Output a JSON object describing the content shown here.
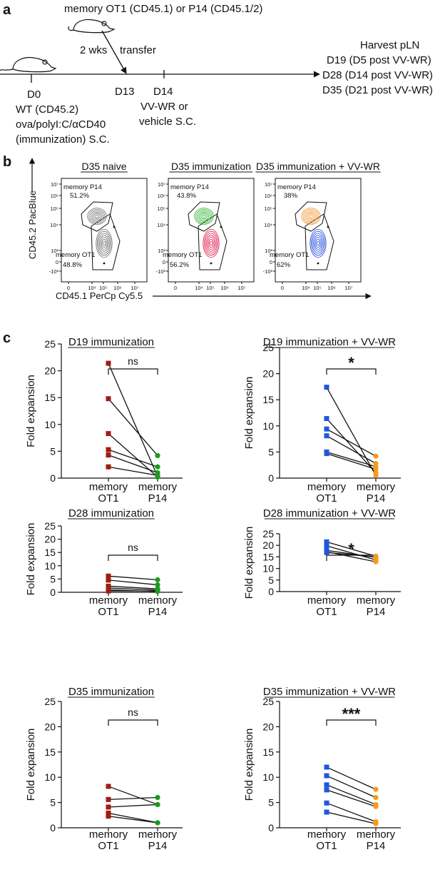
{
  "panel_labels": {
    "a": "a",
    "b": "b",
    "c": "c"
  },
  "timeline": {
    "transfer_text": "memory OT1 (CD45.1) or P14 (CD45.1/2)",
    "wks_text": "2 wks",
    "transfer_label": "transfer",
    "d0": "D0",
    "d0_line1": "WT (CD45.2)",
    "d0_line2": "ova/polyI:C/αCD40",
    "d0_line3": "(immunization) S.C.",
    "d13": "D13",
    "d14": "D14",
    "d14_line1": "VV-WR or",
    "d14_line2": "vehicle S.C.",
    "harvest": [
      "Harvest pLN",
      "D19 (D5 post VV-WR)",
      "D28 (D14 post VV-WR)",
      "D35 (D21 post VV-WR)"
    ]
  },
  "flow": {
    "ylabel": "CD45.2 PacBlue",
    "xlabel": "CD45.1 PerCp Cy5.5",
    "y_ticks": [
      "10⁷",
      "10⁶",
      "10⁵",
      "10⁴",
      "10³",
      "0",
      "-10³"
    ],
    "x_ticks": [
      "0",
      "10⁴",
      "10⁵",
      "10⁶",
      "10⁷"
    ],
    "panels": [
      {
        "title": "D35 naive",
        "p14_label": "memory P14",
        "p14_pct": "51.2%",
        "ot1_label": "memory OT1",
        "ot1_pct": "48.8%",
        "p14_color": "#6a6a6a",
        "ot1_color": "#6a6a6a"
      },
      {
        "title": "D35 immunization",
        "p14_label": "memory P14",
        "p14_pct": "43.8%",
        "ot1_label": "memory OT1",
        "ot1_pct": "56.2%",
        "p14_color": "#22aa22",
        "ot1_color": "#e0144a"
      },
      {
        "title": "D35 immunization + VV-WR",
        "p14_label": "memory P14",
        "p14_pct": "38%",
        "ot1_label": "memory OT1",
        "ot1_pct": "62%",
        "p14_color": "#f08a1c",
        "ot1_color": "#1f47d6"
      }
    ]
  },
  "colors": {
    "dark_red": "#a01c14",
    "green": "#1d9a1d",
    "blue": "#1f56e0",
    "orange": "#f59a20"
  },
  "chart_data": [
    {
      "type": "scatter",
      "title": "D19 immunization",
      "ylabel": "Fold expansion",
      "categories": [
        "memory\nOT1",
        "memory\nP14"
      ],
      "ylim": [
        0,
        25
      ],
      "yticks": [
        0,
        5,
        10,
        15,
        20,
        25
      ],
      "significance": "ns",
      "series": [
        {
          "name": "memory OT1",
          "values": [
            21.4,
            14.8,
            8.3,
            5.3,
            4.3,
            2.1
          ]
        },
        {
          "name": "memory P14",
          "values": [
            0.3,
            4.2,
            0.2,
            2.1,
            1.0,
            0.5
          ]
        }
      ],
      "colors": [
        "#a01c14",
        "#1d9a1d"
      ]
    },
    {
      "type": "scatter",
      "title": "D19 immunization + VV-WR",
      "ylabel": "Fold expansion",
      "categories": [
        "memory\nOT1",
        "memory\nP14"
      ],
      "ylim": [
        0,
        25
      ],
      "yticks": [
        0,
        5,
        10,
        15,
        20,
        25
      ],
      "significance": "*",
      "series": [
        {
          "name": "memory OT1",
          "values": [
            17.4,
            11.4,
            9.4,
            8.1,
            5.0,
            4.7
          ]
        },
        {
          "name": "memory P14",
          "values": [
            0.5,
            1.0,
            4.2,
            2.8,
            2.2,
            1.7
          ]
        }
      ],
      "colors": [
        "#1f56e0",
        "#f59a20"
      ]
    },
    {
      "type": "scatter",
      "title": "D28 immunization",
      "ylabel": "Fold expansion",
      "categories": [
        "memory\nOT1",
        "memory\nP14"
      ],
      "ylim": [
        0,
        25
      ],
      "yticks": [
        0,
        5,
        10,
        15,
        20,
        25
      ],
      "significance": "ns",
      "series": [
        {
          "name": "memory OT1",
          "values": [
            6.1,
            4.6,
            2.3,
            1.6,
            0.9,
            0.5
          ]
        },
        {
          "name": "memory P14",
          "values": [
            4.7,
            2.8,
            1.3,
            0.8,
            0.3,
            0.5
          ]
        }
      ],
      "colors": [
        "#a01c14",
        "#1d9a1d"
      ]
    },
    {
      "type": "scatter",
      "title": "D28 immunization + VV-WR",
      "ylabel": "Fold expansion",
      "categories": [
        "memory\nOT1",
        "memory\nP14"
      ],
      "ylim": [
        0,
        25
      ],
      "yticks": [
        0,
        5,
        10,
        15,
        20,
        25
      ],
      "significance": "*",
      "series": [
        {
          "name": "memory OT1",
          "values": [
            21.5,
            19.8,
            17.8,
            17.2,
            16.9
          ]
        },
        {
          "name": "memory P14",
          "values": [
            15.3,
            13.7,
            14.8,
            12.9,
            15.0
          ]
        }
      ],
      "colors": [
        "#1f56e0",
        "#f59a20"
      ]
    },
    {
      "type": "scatter",
      "title": "D35 immunization",
      "ylabel": "Fold expansion",
      "categories": [
        "memory\nOT1",
        "memory\nP14"
      ],
      "ylim": [
        0,
        25
      ],
      "yticks": [
        0,
        5,
        10,
        15,
        20,
        25
      ],
      "significance": "ns",
      "series": [
        {
          "name": "memory OT1",
          "values": [
            8.2,
            5.6,
            4.1,
            2.9,
            2.3
          ]
        },
        {
          "name": "memory P14",
          "values": [
            4.6,
            6.0,
            4.6,
            1.0,
            1.0
          ]
        }
      ],
      "colors": [
        "#a01c14",
        "#1d9a1d"
      ]
    },
    {
      "type": "scatter",
      "title": "D35 immunization + VV-WR",
      "ylabel": "Fold expansion",
      "categories": [
        "memory\nOT1",
        "memory\nP14"
      ],
      "ylim": [
        0,
        25
      ],
      "yticks": [
        0,
        5,
        10,
        15,
        20,
        25
      ],
      "significance": "***",
      "series": [
        {
          "name": "memory OT1",
          "values": [
            12.0,
            10.3,
            8.5,
            7.5,
            4.9,
            3.1
          ]
        },
        {
          "name": "memory P14",
          "values": [
            7.6,
            6.0,
            4.6,
            4.2,
            1.2,
            0.8
          ]
        }
      ],
      "colors": [
        "#1f56e0",
        "#f59a20"
      ]
    }
  ]
}
